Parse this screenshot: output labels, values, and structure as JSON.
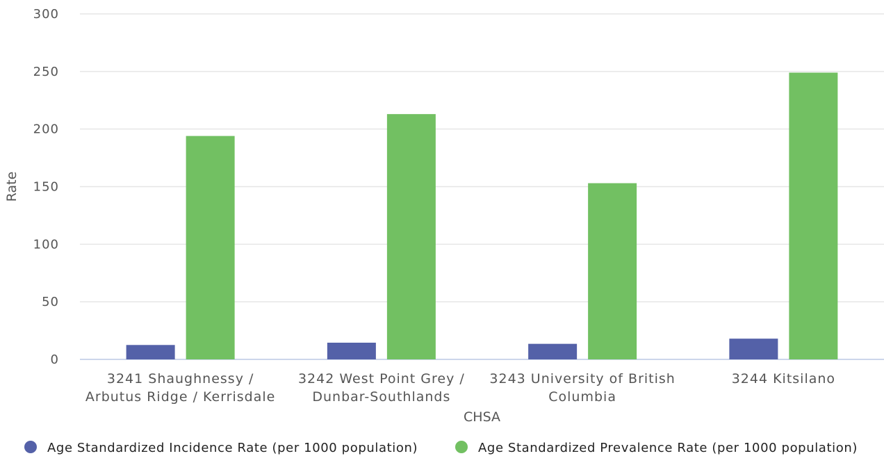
{
  "chart_data": {
    "type": "bar",
    "title": "",
    "xlabel": "CHSA",
    "ylabel": "Rate",
    "ylim": [
      0,
      300
    ],
    "yticks": [
      0,
      50,
      100,
      150,
      200,
      250,
      300
    ],
    "grid": true,
    "legend_position": "bottom",
    "categories": [
      [
        "3241 Shaughnessy /",
        "Arbutus Ridge / Kerrisdale"
      ],
      [
        "3242 West Point Grey /",
        "Dunbar-Southlands"
      ],
      [
        "3243 University of British",
        "Columbia"
      ],
      [
        "3244 Kitsilano"
      ]
    ],
    "series": [
      {
        "name": "Age Standardized Incidence Rate (per 1000 population)",
        "color": "#5461a8",
        "values": [
          12.5,
          14.5,
          13.5,
          18
        ]
      },
      {
        "name": "Age Standardized Prevalence Rate (per 1000 population)",
        "color": "#72c062",
        "values": [
          194,
          213,
          153,
          249
        ]
      }
    ]
  }
}
